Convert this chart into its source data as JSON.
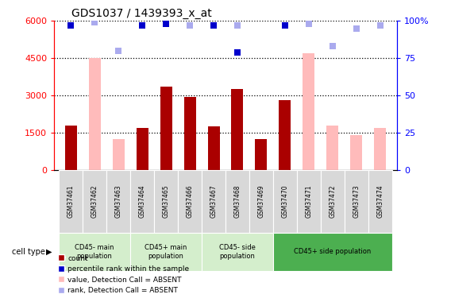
{
  "title": "GDS1037 / 1439393_x_at",
  "samples": [
    "GSM37461",
    "GSM37462",
    "GSM37463",
    "GSM37464",
    "GSM37465",
    "GSM37466",
    "GSM37467",
    "GSM37468",
    "GSM37469",
    "GSM37470",
    "GSM37471",
    "GSM37472",
    "GSM37473",
    "GSM37474"
  ],
  "count_values": [
    1800,
    null,
    null,
    1700,
    3350,
    2950,
    1750,
    3250,
    1250,
    2800,
    null,
    null,
    null,
    null
  ],
  "absent_values": [
    null,
    4500,
    1250,
    null,
    null,
    null,
    null,
    null,
    null,
    null,
    4700,
    1800,
    1400,
    1700
  ],
  "rank_dark": [
    97,
    null,
    null,
    97,
    98,
    97,
    97,
    79,
    null,
    97,
    null,
    null,
    null,
    null
  ],
  "rank_absent": [
    null,
    99,
    80,
    null,
    null,
    97,
    null,
    97,
    null,
    null,
    98,
    83,
    95,
    97
  ],
  "cell_type_groups": [
    {
      "label": "CD45- main\npopulation",
      "start": 0,
      "end": 3,
      "color": "#d4eecc",
      "dark": false
    },
    {
      "label": "CD45+ main\npopulation",
      "start": 3,
      "end": 6,
      "color": "#d4eecc",
      "dark": false
    },
    {
      "label": "CD45- side\npopulation",
      "start": 6,
      "end": 9,
      "color": "#d4eecc",
      "dark": false
    },
    {
      "label": "CD45+ side population",
      "start": 9,
      "end": 14,
      "color": "#4caf50",
      "dark": true
    }
  ],
  "ylim_left": [
    0,
    6000
  ],
  "ylim_right": [
    0,
    100
  ],
  "left_ticks": [
    0,
    1500,
    3000,
    4500,
    6000
  ],
  "right_ticks": [
    0,
    25,
    50,
    75,
    100
  ],
  "bar_color_dark": "#aa0000",
  "bar_color_light": "#ffbbbb",
  "rank_color_dark": "#0000cc",
  "rank_color_light": "#aaaaee",
  "marker_size": 6,
  "bar_width": 0.5,
  "bg_sample_gray": "#d8d8d8"
}
